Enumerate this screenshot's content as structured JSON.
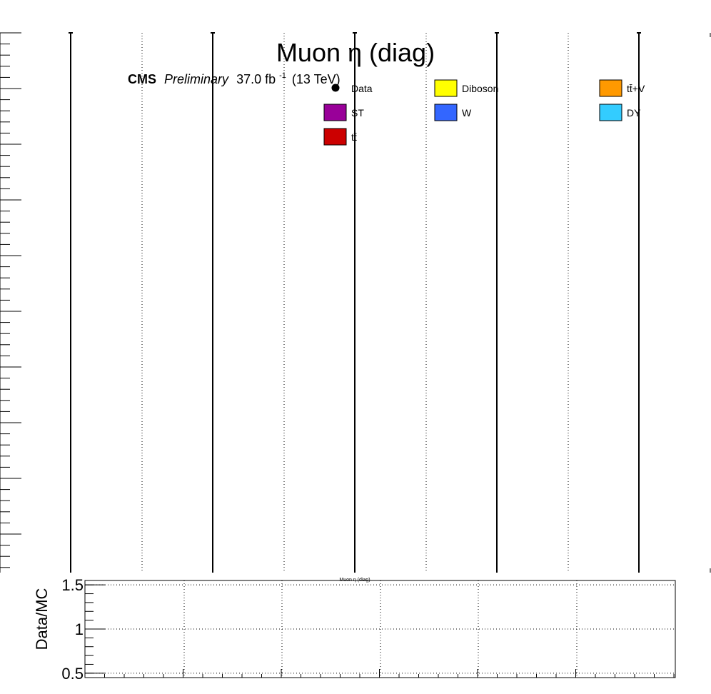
{
  "chart_data": [
    {
      "type": "bar",
      "title": "Muon η (diag)",
      "annotation": {
        "experiment": "CMS",
        "status": "Preliminary",
        "lumi_value": "37.0 fb",
        "lumi_exponent": "-1",
        "energy": "(13 TeV)"
      },
      "legend": {
        "placement": "top",
        "entries": [
          {
            "label": "Data",
            "style": "marker",
            "color": "#000000"
          },
          {
            "label": "Diboson",
            "style": "fill",
            "color": "#ffff00"
          },
          {
            "label": "tt̄+V",
            "style": "fill",
            "color": "#ff9900"
          },
          {
            "label": "ST",
            "style": "fill",
            "color": "#990099"
          },
          {
            "label": "W",
            "style": "fill",
            "color": "#3366ff"
          },
          {
            "label": "DY",
            "style": "fill",
            "color": "#33ccff"
          },
          {
            "label": "tt̄",
            "style": "fill",
            "color": "#cc0000"
          }
        ]
      },
      "series": [],
      "grid": true
    },
    {
      "type": "scatter",
      "xlabel": "Muon η (diag)",
      "ylabel": "Data/MC",
      "ylim": [
        0.45,
        1.55
      ],
      "yticks": [
        {
          "value": 0.5,
          "label": "0.5"
        },
        {
          "value": 1.0,
          "label": "1"
        },
        {
          "value": 1.5,
          "label": "1.5"
        }
      ],
      "series": [],
      "grid": true
    }
  ]
}
